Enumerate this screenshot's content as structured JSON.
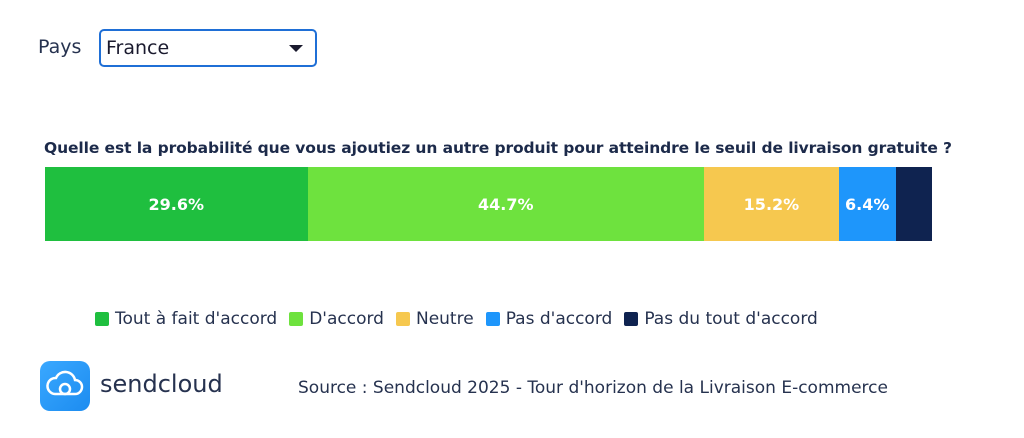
{
  "filter": {
    "label": "Pays",
    "selected": "France"
  },
  "chart_data": {
    "type": "bar",
    "orientation": "horizontal-stacked",
    "title": "Quelle est la probabilité que vous ajoutiez un autre produit pour atteindre le seuil de livraison gratuite ?",
    "categories": [
      "Tout à fait d'accord",
      "D'accord",
      "Neutre",
      "Pas d'accord",
      "Pas du tout d'accord"
    ],
    "values": [
      29.6,
      44.7,
      15.2,
      6.4,
      4.1
    ],
    "data_labels": [
      "29.6%",
      "44.7%",
      "15.2%",
      "6.4%",
      ""
    ],
    "colors": [
      "#1fbf3f",
      "#6ee23e",
      "#f6c84f",
      "#1e96fb",
      "#0f2350"
    ],
    "legend_position": "bottom",
    "grid": false
  },
  "footer": {
    "brand": "sendcloud",
    "source": "Source : Sendcloud 2025 - Tour d'horizon de la Livraison E-commerce"
  }
}
